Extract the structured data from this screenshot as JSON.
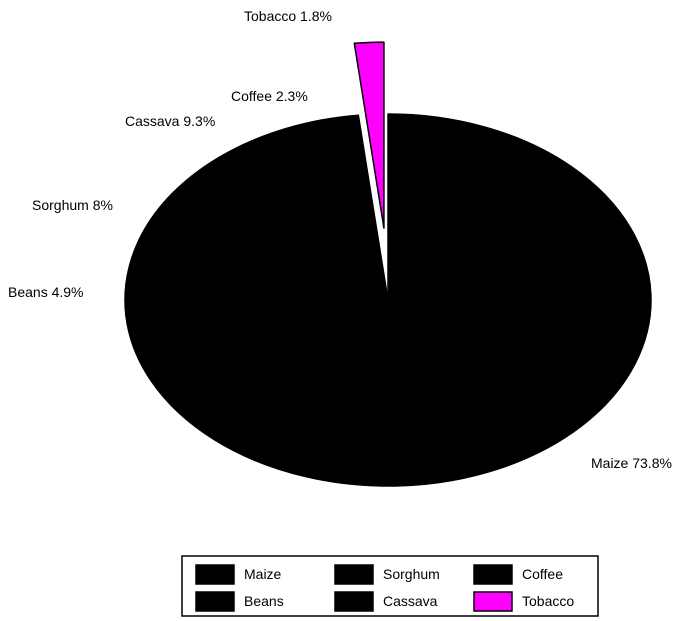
{
  "chart_data": {
    "type": "pie",
    "title": "",
    "slices": [
      {
        "label": "Maize",
        "value": 73.8,
        "display": "Maize 73.8%",
        "color": "#000000",
        "exploded": false
      },
      {
        "label": "Sorghum",
        "value": 8,
        "display": "Sorghum 8%",
        "color": "#000000",
        "exploded": false
      },
      {
        "label": "Coffee",
        "value": 2.3,
        "display": "Coffee 2.3%",
        "color": "#000000",
        "exploded": false
      },
      {
        "label": "Beans",
        "value": 4.9,
        "display": "Beans 4.9%",
        "color": "#000000",
        "exploded": false
      },
      {
        "label": "Cassava",
        "value": 9.3,
        "display": "Cassava 9.3%",
        "color": "#000000",
        "exploded": false
      },
      {
        "label": "Tobacco",
        "value": 1.8,
        "display": "Tobacco 1.8%",
        "color": "#ff00ff",
        "exploded": true
      }
    ],
    "slice_order": [
      "Maize",
      "Beans",
      "Sorghum",
      "Cassava",
      "Coffee",
      "Tobacco"
    ],
    "legend": {
      "placement": "bottom",
      "items": [
        "Maize",
        "Sorghum",
        "Coffee",
        "Beans",
        "Cassava",
        "Tobacco"
      ]
    }
  }
}
